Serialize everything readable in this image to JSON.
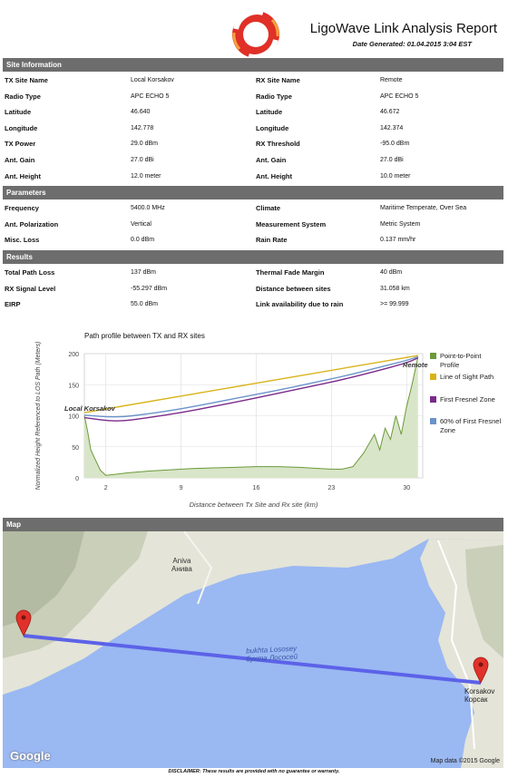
{
  "header": {
    "title": "LigoWave Link Analysis Report",
    "date": "Date Generated: 01.04.2015 3:04 EST",
    "colors": {
      "logo_red": "#e03027",
      "logo_orange": "#f4a23a"
    }
  },
  "site_info": {
    "heading": "Site Information",
    "rows": [
      {
        "l1": "TX Site Name",
        "v1": "Local Korsakov",
        "l2": "RX Site Name",
        "v2": "Remote"
      },
      {
        "l1": "Radio Type",
        "v1": "APC ECHO 5",
        "l2": "Radio Type",
        "v2": "APC ECHO 5"
      },
      {
        "l1": "Latitude",
        "v1": "46.640",
        "l2": "Latitude",
        "v2": "46.672"
      },
      {
        "l1": "Longitude",
        "v1": "142.778",
        "l2": "Longitude",
        "v2": "142.374"
      },
      {
        "l1": "TX Power",
        "v1": "29.0 dBm",
        "l2": "RX Threshold",
        "v2": "-95.0 dBm"
      },
      {
        "l1": "Ant. Gain",
        "v1": "27.0 dBi",
        "l2": "Ant. Gain",
        "v2": "27.0 dBi"
      },
      {
        "l1": "Ant. Height",
        "v1": "12.0 meter",
        "l2": "Ant. Height",
        "v2": "10.0 meter"
      }
    ]
  },
  "parameters": {
    "heading": "Parameters",
    "rows": [
      {
        "l1": "Frequency",
        "v1": "5400.0 MHz",
        "l2": "Climate",
        "v2": "Maritime Temperate, Over Sea"
      },
      {
        "l1": "Ant. Polarization",
        "v1": "Vertical",
        "l2": "Measurement System",
        "v2": "Metric System"
      },
      {
        "l1": "Misc. Loss",
        "v1": "0.0 dBm",
        "l2": "Rain Rate",
        "v2": "0.137 mm/hr"
      }
    ]
  },
  "results": {
    "heading": "Results",
    "rows": [
      {
        "l1": "Total Path Loss",
        "v1": "137 dBm",
        "l2": "Thermal Fade Margin",
        "v2": "40 dBm"
      },
      {
        "l1": "RX Signal Level",
        "v1": "-55.297 dBm",
        "l2": "Distance between sites",
        "v2": "31.058 km"
      },
      {
        "l1": "EIRP",
        "v1": "55.0 dBm",
        "l2": "Link availability due to rain",
        "v2": ">= 99.999"
      }
    ]
  },
  "chart_data": {
    "type": "line",
    "title": "Path profile between TX and RX sites",
    "xlabel": "Distance between Tx Site and Rx site (km)",
    "ylabel": "Normalized Height Referenced to LOS Path (Meters)",
    "xlim": [
      0,
      31.5
    ],
    "ylim": [
      0,
      200
    ],
    "xticks": [
      "2",
      "9",
      "16",
      "23",
      "30"
    ],
    "yticks": [
      "0",
      "50",
      "100",
      "150",
      "200"
    ],
    "grid": true,
    "legend_position": "right",
    "annotations": [
      "Local Korsakov",
      "Remote"
    ],
    "series": [
      {
        "name": "Point-to-Point Profile",
        "color": "#6a9a3a",
        "x": [
          0,
          0.3,
          0.6,
          1.0,
          1.5,
          2.0,
          4,
          6,
          8,
          10,
          12,
          14,
          16,
          18,
          20,
          22,
          23,
          24,
          25,
          26,
          27,
          27.5,
          28,
          28.5,
          29,
          29.5,
          30,
          30.5,
          31.058
        ],
        "values": [
          100,
          75,
          45,
          30,
          12,
          4,
          8,
          11,
          13,
          15,
          16,
          17,
          18,
          18,
          17,
          15,
          14,
          14,
          18,
          40,
          70,
          45,
          80,
          62,
          100,
          70,
          115,
          150,
          195
        ]
      },
      {
        "name": "Line of Sight Path",
        "color": "#d9b31a",
        "x": [
          0,
          31.058
        ],
        "values": [
          105,
          197
        ]
      },
      {
        "name": "First Fresnel Zone",
        "color": "#7b2a8a",
        "x": [
          0,
          3,
          6,
          9,
          12,
          15,
          18,
          21,
          24,
          27,
          30,
          31.058
        ],
        "values": [
          97,
          90,
          97,
          105,
          115,
          125,
          136,
          147,
          158,
          171,
          185,
          193
        ]
      },
      {
        "name": "60% of First Fresnel Zone",
        "color": "#6b93c9",
        "x": [
          0,
          3,
          6,
          9,
          12,
          15,
          18,
          21,
          24,
          27,
          30,
          31.058
        ],
        "values": [
          101,
          97,
          103,
          111,
          121,
          131,
          141,
          152,
          163,
          176,
          189,
          195
        ]
      }
    ]
  },
  "map": {
    "heading": "Map",
    "water_label_latin": "bukhta Lososey",
    "water_label_cyrillic": "бухта Лососей",
    "town1_latin": "Aniva",
    "town1_cyrillic": "Анива",
    "town2_latin": "Korsakov",
    "town2_cyrillic": "Корсак",
    "google": "Google",
    "attribution": "Map data ©2015 Google",
    "colors": {
      "water": "#9ab8f2",
      "land": "#e6e6dc",
      "link": "#5c62e8",
      "pin": "#e0322a"
    }
  },
  "footer": {
    "disclaimer": "DISCLAIMER: These results are provided with no guarantee or warranty."
  }
}
